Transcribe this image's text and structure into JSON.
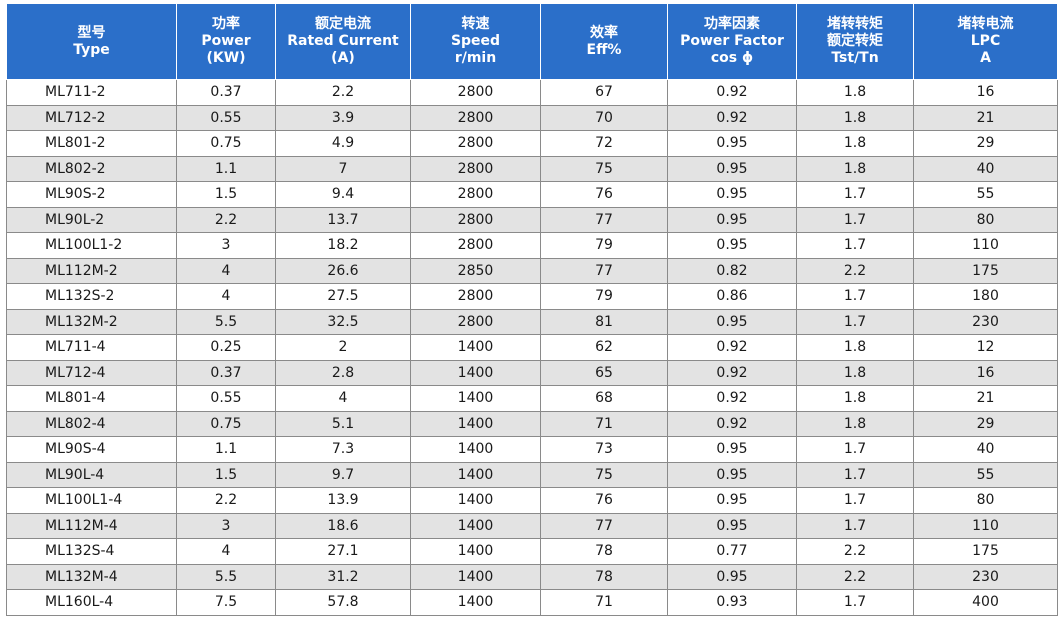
{
  "header": [
    {
      "lines": [
        "型号",
        "Type"
      ]
    },
    {
      "lines": [
        "功率",
        "Power",
        "(KW)"
      ]
    },
    {
      "lines": [
        "额定电流",
        "Rated Current",
        "(A)"
      ]
    },
    {
      "lines": [
        "转速",
        "Speed",
        "r/min"
      ]
    },
    {
      "lines": [
        "效率",
        "Eff%"
      ]
    },
    {
      "lines": [
        "功率因素",
        "Power Factor",
        "cos ϕ"
      ]
    },
    {
      "lines": [
        "堵转转矩",
        "额定转矩",
        "Tst/Tn"
      ]
    },
    {
      "lines": [
        "堵转电流",
        "LPC",
        "A"
      ]
    }
  ],
  "rows": [
    [
      "ML711-2",
      "0.37",
      "2.2",
      "2800",
      "67",
      "0.92",
      "1.8",
      "16"
    ],
    [
      "ML712-2",
      "0.55",
      "3.9",
      "2800",
      "70",
      "0.92",
      "1.8",
      "21"
    ],
    [
      "ML801-2",
      "0.75",
      "4.9",
      "2800",
      "72",
      "0.95",
      "1.8",
      "29"
    ],
    [
      "ML802-2",
      "1.1",
      "7",
      "2800",
      "75",
      "0.95",
      "1.8",
      "40"
    ],
    [
      "ML90S-2",
      "1.5",
      "9.4",
      "2800",
      "76",
      "0.95",
      "1.7",
      "55"
    ],
    [
      "ML90L-2",
      "2.2",
      "13.7",
      "2800",
      "77",
      "0.95",
      "1.7",
      "80"
    ],
    [
      "ML100L1-2",
      "3",
      "18.2",
      "2800",
      "79",
      "0.95",
      "1.7",
      "110"
    ],
    [
      "ML112M-2",
      "4",
      "26.6",
      "2850",
      "77",
      "0.82",
      "2.2",
      "175"
    ],
    [
      "ML132S-2",
      "4",
      "27.5",
      "2800",
      "79",
      "0.86",
      "1.7",
      "180"
    ],
    [
      "ML132M-2",
      "5.5",
      "32.5",
      "2800",
      "81",
      "0.95",
      "1.7",
      "230"
    ],
    [
      "ML711-4",
      "0.25",
      "2",
      "1400",
      "62",
      "0.92",
      "1.8",
      "12"
    ],
    [
      "ML712-4",
      "0.37",
      "2.8",
      "1400",
      "65",
      "0.92",
      "1.8",
      "16"
    ],
    [
      "ML801-4",
      "0.55",
      "4",
      "1400",
      "68",
      "0.92",
      "1.8",
      "21"
    ],
    [
      "ML802-4",
      "0.75",
      "5.1",
      "1400",
      "71",
      "0.92",
      "1.8",
      "29"
    ],
    [
      "ML90S-4",
      "1.1",
      "7.3",
      "1400",
      "73",
      "0.95",
      "1.7",
      "40"
    ],
    [
      "ML90L-4",
      "1.5",
      "9.7",
      "1400",
      "75",
      "0.95",
      "1.7",
      "55"
    ],
    [
      "ML100L1-4",
      "2.2",
      "13.9",
      "1400",
      "76",
      "0.95",
      "1.7",
      "80"
    ],
    [
      "ML112M-4",
      "3",
      "18.6",
      "1400",
      "77",
      "0.95",
      "1.7",
      "110"
    ],
    [
      "ML132S-4",
      "4",
      "27.1",
      "1400",
      "78",
      "0.77",
      "2.2",
      "175"
    ],
    [
      "ML132M-4",
      "5.5",
      "31.2",
      "1400",
      "78",
      "0.95",
      "2.2",
      "230"
    ],
    [
      "ML160L-4",
      "7.5",
      "57.8",
      "1400",
      "71",
      "0.93",
      "1.7",
      "400"
    ]
  ],
  "colors": {
    "header_bg": "#2b6fc9",
    "header_text": "#ffffff",
    "alt_row_bg": "#e3e3e3"
  }
}
